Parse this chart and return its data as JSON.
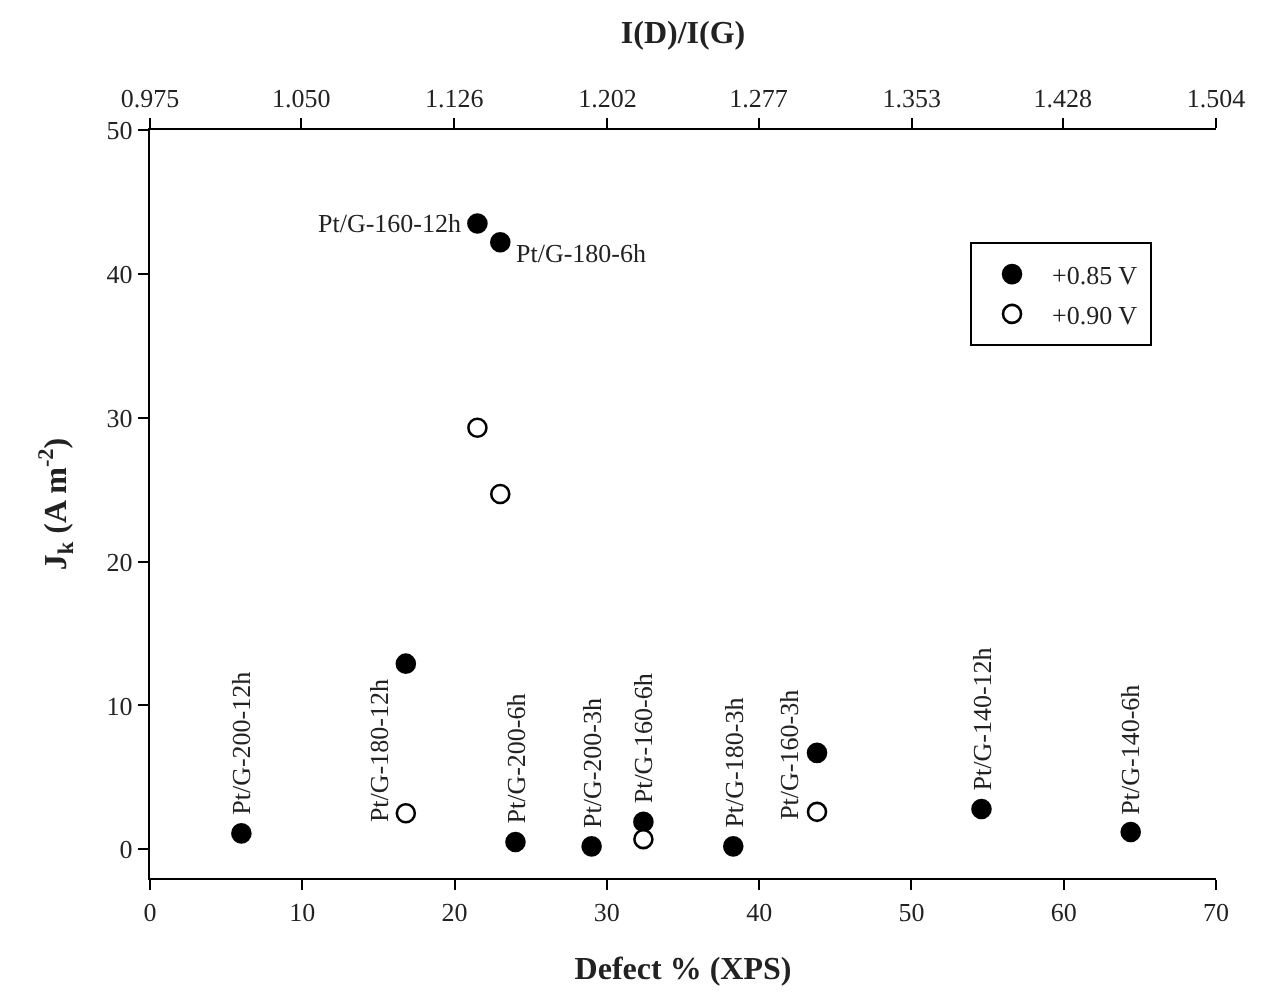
{
  "chart_data": {
    "type": "scatter",
    "xlabel": "Defect % (XPS)",
    "ylabel": "J$_{k}$ (A m$^{-2}$)",
    "x2label": "I(D)/I(G)",
    "series": [
      {
        "name": "+0.85 V",
        "color": "#000000",
        "x": [
          6,
          16.8,
          21.5,
          23,
          24,
          29,
          32.4,
          38.3,
          43.8,
          54.6,
          64.4
        ],
        "values": [
          1.1,
          12.9,
          43.5,
          42.2,
          0.5,
          0.2,
          1.9,
          0.2,
          6.7,
          2.8,
          1.2
        ]
      },
      {
        "name": "+0.90 V",
        "color": "#ffffff",
        "x": [
          16.8,
          21.5,
          23,
          32.4,
          43.8
        ],
        "values": [
          2.5,
          29.3,
          24.7,
          0.7,
          2.6
        ]
      }
    ],
    "xlim": [
      0,
      70
    ],
    "xticks": [
      0,
      10,
      20,
      30,
      40,
      50,
      60,
      70
    ],
    "ylim": [
      -2,
      50
    ],
    "yticks": [
      0,
      10,
      20,
      30,
      40,
      50
    ],
    "x2lim": [
      0.975,
      1.504
    ],
    "x2ticks": [
      0.975,
      {
        "value": 1.05,
        "label": "1.050"
      },
      1.126,
      1.202,
      1.277,
      1.353,
      1.428,
      1.504
    ],
    "legend": "top right",
    "marker": "circle",
    "annotations": [
      {
        "text": "Pt/G-160-12h",
        "x": 21.5,
        "y": 43.5
      },
      {
        "text": "Pt/G-180-6h",
        "x": 23,
        "y": 42.2
      },
      {
        "text": "Pt/G-200-12h",
        "x": 6,
        "y": 1.1
      },
      {
        "text": "Pt/G-180-12h",
        "x": 16.8,
        "y": 2.5
      },
      {
        "text": "Pt/G-200-6h",
        "x": 24,
        "y": 0.5
      },
      {
        "text": "Pt/G-200-3h",
        "x": 29,
        "y": 0.2
      },
      {
        "text": "Pt/G-160-6h",
        "x": 32.4,
        "y": 1.9
      },
      {
        "text": "Pt/G-180-3h",
        "x": 38.3,
        "y": 0.2
      },
      {
        "text": "Pt/G-160-3h",
        "x": 43.8,
        "y": 2.6
      },
      {
        "text": "Pt/G-140-12h",
        "x": 54.6,
        "y": 2.8
      },
      {
        "text": "Pt/G-140-6h",
        "x": 64.4,
        "y": 1.2
      }
    ]
  }
}
